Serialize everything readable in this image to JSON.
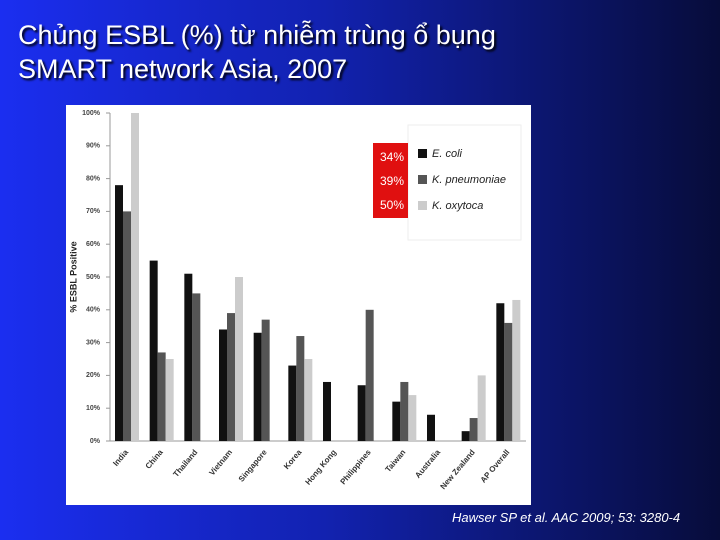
{
  "slide": {
    "title": [
      "Chủng ESBL (%) từ nhiễm trùng ổ bụng",
      "SMART network Asia, 2007"
    ],
    "citation": "Hawser SP et al. AAC 2009; 53: 3280-4"
  },
  "chart_data": {
    "type": "bar",
    "y_label": "% ESBL Positive",
    "categories": [
      "India",
      "China",
      "Thailand",
      "Vietnam",
      "Singapore",
      "Korea",
      "Hong Kong",
      "Philippines",
      "Taiwan",
      "Australia",
      "New Zealand",
      "AP Overall"
    ],
    "series": [
      {
        "name": "E. coli",
        "color": "#111111",
        "values": [
          78,
          55,
          51,
          34,
          33,
          23,
          18,
          17,
          12,
          8,
          3,
          42
        ]
      },
      {
        "name": "K. pneumoniae",
        "color": "#555555",
        "values": [
          70,
          27,
          45,
          39,
          37,
          32,
          null,
          40,
          18,
          null,
          7,
          36
        ]
      },
      {
        "name": "K. oxytoca",
        "color": "#cccccc",
        "values": [
          100,
          25,
          null,
          50,
          null,
          25,
          null,
          null,
          14,
          null,
          20,
          43
        ]
      }
    ],
    "annotations": [
      "34%",
      "39%",
      "50%"
    ],
    "ylim": [
      0,
      100
    ],
    "yticks": [
      {
        "value": 0,
        "label": "0%"
      },
      {
        "value": 10,
        "label": "10%"
      },
      {
        "value": 20,
        "label": "20%"
      },
      {
        "value": 30,
        "label": "30%"
      },
      {
        "value": 40,
        "label": "40%"
      },
      {
        "value": 50,
        "label": "50%"
      },
      {
        "value": 60,
        "label": "60%"
      },
      {
        "value": 70,
        "label": "70%"
      },
      {
        "value": 80,
        "label": "80%"
      },
      {
        "value": 90,
        "label": "90%"
      },
      {
        "value": 100,
        "label": "100%"
      }
    ],
    "grid": false
  }
}
